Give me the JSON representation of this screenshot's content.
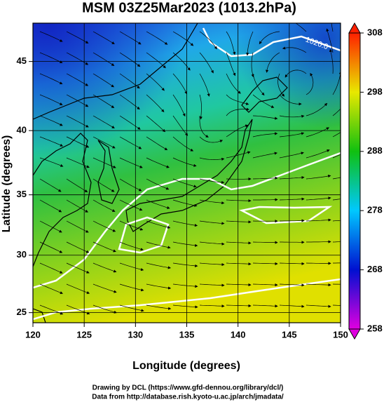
{
  "chart_data": {
    "type": "map",
    "title": "MSM 03Z25Mar2023 (1013.2hPa)",
    "xlabel": "Longitude (degrees)",
    "ylabel": "Latitude  (degrees)",
    "projection": "mercator",
    "xlim": [
      120,
      150
    ],
    "xticks": [
      120,
      125,
      130,
      135,
      140,
      145,
      150
    ],
    "ylim": [
      24.1,
      47.6
    ],
    "yticks": [
      25,
      30,
      35,
      40,
      45
    ],
    "grid": true,
    "annotations": [
      "1020.0"
    ],
    "colorbar": {
      "lim": [
        258,
        308
      ],
      "ticks": [
        258,
        268,
        278,
        288,
        298,
        308
      ],
      "colors": [
        "#e000e0",
        "#0010d0",
        "#00c8ff",
        "#10c010",
        "#e8e800",
        "#ff2000"
      ]
    },
    "footer": [
      "Drawing by DCL (https://www.gfd-dennou.org/library/dcl/)",
      "Data from http://database.rish.kyoto-u.ac.jp/arch/jmadata/"
    ]
  }
}
